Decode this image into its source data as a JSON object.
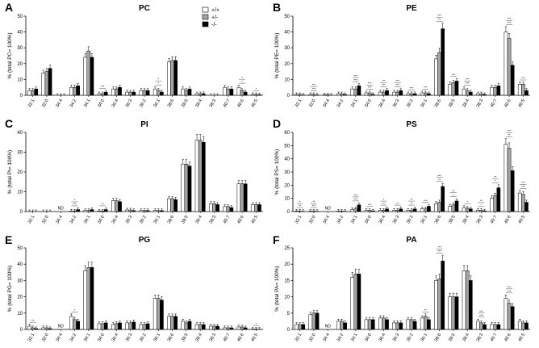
{
  "categories": [
    "32:1",
    "32:0",
    "34:4",
    "34:2",
    "34:1",
    "34:0",
    "36:4",
    "36:3",
    "36:2",
    "36:1",
    "38:6",
    "38:5",
    "38:4",
    "38:3",
    "40:7",
    "40:6",
    "40:5"
  ],
  "legend": [
    {
      "label": "+/+",
      "color": "#ffffff"
    },
    {
      "label": "+/-",
      "color": "#a6a6a6"
    },
    {
      "label": "-/-",
      "color": "#000000"
    }
  ],
  "chart_data": [
    {
      "panel": "A",
      "type": "bar",
      "title": "PC",
      "ylabel": "% (total PC= 100%)",
      "ylim": [
        0,
        50
      ],
      "yticks": [
        0,
        10,
        20,
        30,
        40,
        50
      ],
      "series": [
        {
          "name": "+/+",
          "values": [
            3,
            14,
            0,
            5,
            24,
            1,
            4,
            2,
            3,
            4,
            21,
            4,
            1,
            0,
            5,
            5,
            0.5
          ]
        },
        {
          "name": "+/-",
          "values": [
            3,
            15,
            0,
            5,
            28,
            1,
            4,
            2,
            3,
            3,
            22,
            3,
            1,
            0,
            4,
            3,
            0.5
          ]
        },
        {
          "name": "-/-",
          "values": [
            4,
            17,
            0,
            6,
            24,
            2,
            5,
            2,
            3,
            2,
            22,
            4,
            1,
            0,
            4,
            2,
            0.3
          ]
        }
      ],
      "nd": [],
      "annotations": [
        {
          "category": "34:0",
          "text": "***"
        },
        {
          "category": "36:1",
          "text": "*"
        },
        {
          "category": "36:1",
          "text": "*"
        },
        {
          "category": "40:6",
          "text": "*"
        },
        {
          "category": "40:6",
          "text": "*"
        },
        {
          "category": "40:5",
          "text": "*"
        }
      ]
    },
    {
      "panel": "B",
      "type": "bar",
      "title": "PE",
      "ylabel": "% (total PE= 100%)",
      "ylim": [
        0,
        50
      ],
      "yticks": [
        0,
        10,
        20,
        30,
        40,
        50
      ],
      "series": [
        {
          "name": "+/+",
          "values": [
            0.5,
            0.5,
            0.3,
            1,
            4,
            1.5,
            2,
            2,
            1,
            1.5,
            23,
            7,
            4,
            1,
            5,
            40,
            7
          ]
        },
        {
          "name": "+/-",
          "values": [
            0.5,
            0.5,
            0.3,
            1,
            4,
            1.5,
            2,
            2,
            1,
            1.5,
            27,
            8,
            3,
            1,
            5,
            36,
            7
          ]
        },
        {
          "name": "-/-",
          "values": [
            0.2,
            0.2,
            0.1,
            0.5,
            6,
            0.5,
            3,
            3,
            1,
            1,
            42,
            9,
            2,
            0.5,
            6,
            19,
            3
          ]
        }
      ],
      "nd": [],
      "annotations": [
        {
          "category": "32:0",
          "text": "***"
        },
        {
          "category": "32:0",
          "text": "***"
        },
        {
          "category": "34:1",
          "text": "***"
        },
        {
          "category": "34:1",
          "text": "***"
        },
        {
          "category": "34:0",
          "text": "***"
        },
        {
          "category": "34:0",
          "text": "***"
        },
        {
          "category": "36:4",
          "text": "***"
        },
        {
          "category": "36:4",
          "text": "**"
        },
        {
          "category": "36:3",
          "text": "***"
        },
        {
          "category": "36:3",
          "text": "***"
        },
        {
          "category": "36:2",
          "text": "***"
        },
        {
          "category": "36:1",
          "text": "***"
        },
        {
          "category": "38:6",
          "text": "**"
        },
        {
          "category": "38:6",
          "text": "***"
        },
        {
          "category": "38:5",
          "text": "***"
        },
        {
          "category": "38:4",
          "text": "***"
        },
        {
          "category": "38:4",
          "text": "***"
        },
        {
          "category": "40:6",
          "text": "***"
        },
        {
          "category": "40:6",
          "text": "***"
        },
        {
          "category": "40:5",
          "text": "***"
        }
      ]
    },
    {
      "panel": "C",
      "type": "bar",
      "title": "PI",
      "ylabel": "% (total PI= 100%)",
      "ylim": [
        0,
        40
      ],
      "yticks": [
        0,
        10,
        20,
        30,
        40
      ],
      "series": [
        {
          "name": "+/+",
          "values": [
            0,
            0,
            0,
            0.3,
            0.5,
            0.3,
            5.5,
            0.8,
            0.5,
            0.5,
            6.5,
            24,
            36,
            4,
            2.5,
            14,
            3.5
          ]
        },
        {
          "name": "+/-",
          "values": [
            0,
            0,
            0,
            0.3,
            0.5,
            0.3,
            5.5,
            0.8,
            0.5,
            0.5,
            6.5,
            24,
            36,
            4,
            2.5,
            14,
            3.5
          ]
        },
        {
          "name": "-/-",
          "values": [
            0,
            0,
            0,
            1,
            1,
            1,
            5,
            0.5,
            0.5,
            0.5,
            6,
            23,
            35,
            3.5,
            2,
            14,
            3.5
          ]
        }
      ],
      "nd": [
        "34:4"
      ],
      "annotations": [
        {
          "category": "34:2",
          "text": "***"
        },
        {
          "category": "34:2",
          "text": "*"
        },
        {
          "category": "34:0",
          "text": "**"
        }
      ]
    },
    {
      "panel": "D",
      "type": "bar",
      "title": "PS",
      "ylabel": "% (total PS= 100%)",
      "ylim": [
        0,
        60
      ],
      "yticks": [
        0,
        10,
        20,
        30,
        40,
        50,
        60
      ],
      "series": [
        {
          "name": "+/+",
          "values": [
            0.3,
            0.3,
            0,
            0.3,
            1.5,
            1,
            1,
            1,
            1,
            2,
            6,
            4,
            3,
            1,
            10,
            51,
            14
          ]
        },
        {
          "name": "+/-",
          "values": [
            0.3,
            0.3,
            0,
            0.3,
            2,
            1,
            1,
            1,
            1,
            2,
            7,
            5,
            2.5,
            1,
            12,
            48,
            13
          ]
        },
        {
          "name": "-/-",
          "values": [
            0.1,
            0.1,
            0,
            0.2,
            5,
            0.5,
            2,
            2,
            2,
            4,
            19,
            8,
            2,
            0.5,
            18,
            31,
            7
          ]
        }
      ],
      "nd": [
        "34:4"
      ],
      "annotations": [
        {
          "category": "32:1",
          "text": "**"
        },
        {
          "category": "32:1",
          "text": "*"
        },
        {
          "category": "32:0",
          "text": "***"
        },
        {
          "category": "32:0",
          "text": "**"
        },
        {
          "category": "34:1",
          "text": "***"
        },
        {
          "category": "34:1",
          "text": "***"
        },
        {
          "category": "34:0",
          "text": "***"
        },
        {
          "category": "36:4",
          "text": "**"
        },
        {
          "category": "36:4",
          "text": "*"
        },
        {
          "category": "36:3",
          "text": "**"
        },
        {
          "category": "36:2",
          "text": "**"
        },
        {
          "category": "36:2",
          "text": "**"
        },
        {
          "category": "36:1",
          "text": "***"
        },
        {
          "category": "38:6",
          "text": "**"
        },
        {
          "category": "38:6",
          "text": "***"
        },
        {
          "category": "38:5",
          "text": "*"
        },
        {
          "category": "38:5",
          "text": "**"
        },
        {
          "category": "38:4",
          "text": "*"
        },
        {
          "category": "38:3",
          "text": "*"
        },
        {
          "category": "38:3",
          "text": "**"
        },
        {
          "category": "40:7",
          "text": "*"
        },
        {
          "category": "40:7",
          "text": "**"
        },
        {
          "category": "40:6",
          "text": "**"
        },
        {
          "category": "40:6",
          "text": "***"
        },
        {
          "category": "40:5",
          "text": "***"
        },
        {
          "category": "40:5",
          "text": "***"
        }
      ]
    },
    {
      "panel": "E",
      "type": "bar",
      "title": "PG",
      "ylabel": "% (total PG= 100%)",
      "ylim": [
        0,
        50
      ],
      "yticks": [
        0,
        10,
        20,
        30,
        40,
        50
      ],
      "series": [
        {
          "name": "+/+",
          "values": [
            2,
            1,
            0,
            8,
            36,
            3.5,
            3,
            4,
            3,
            19,
            8,
            5,
            3,
            2,
            1,
            1.5,
            0.2
          ]
        },
        {
          "name": "+/-",
          "values": [
            1,
            1,
            0,
            6,
            38,
            3.5,
            3.5,
            4,
            3,
            19,
            8,
            4,
            3,
            2,
            1,
            1.5,
            0.2
          ]
        },
        {
          "name": "-/-",
          "values": [
            0.5,
            0.5,
            0,
            5,
            38,
            4,
            4,
            4.5,
            3.5,
            18,
            8,
            5,
            3,
            2,
            1,
            1,
            0.1
          ]
        }
      ],
      "nd": [
        "34:4"
      ],
      "annotations": [
        {
          "category": "32:1",
          "text": "**"
        },
        {
          "category": "34:2",
          "text": "*"
        },
        {
          "category": "40:5",
          "text": "*"
        }
      ]
    },
    {
      "panel": "F",
      "type": "bar",
      "title": "PA",
      "ylabel": "% (total PA= 100%)",
      "ylim": [
        0,
        25
      ],
      "yticks": [
        0,
        5,
        10,
        15,
        20,
        25
      ],
      "series": [
        {
          "name": "+/+",
          "values": [
            1.5,
            4.5,
            0,
            2.5,
            16,
            3,
            3.5,
            2,
            3,
            3.5,
            15,
            10,
            18,
            2.5,
            1.5,
            9.5,
            2.5
          ]
        },
        {
          "name": "+/-",
          "values": [
            1.5,
            5,
            0,
            2.5,
            17,
            3,
            3.5,
            2,
            3,
            4,
            15.5,
            10,
            18,
            2,
            1.5,
            8,
            2
          ]
        },
        {
          "name": "-/-",
          "values": [
            1.5,
            5,
            0,
            2,
            17,
            3,
            3,
            2,
            2.5,
            3,
            21,
            10,
            15,
            1.5,
            1.5,
            7,
            2
          ]
        }
      ],
      "nd": [
        "34:4"
      ],
      "annotations": [
        {
          "category": "36:1",
          "text": "**"
        },
        {
          "category": "38:6",
          "text": "***"
        },
        {
          "category": "38:6",
          "text": "***"
        },
        {
          "category": "38:3",
          "text": "***"
        },
        {
          "category": "38:3",
          "text": "***"
        },
        {
          "category": "40:6",
          "text": "***"
        },
        {
          "category": "40:6",
          "text": "***"
        }
      ]
    }
  ],
  "nd_label": "ND"
}
